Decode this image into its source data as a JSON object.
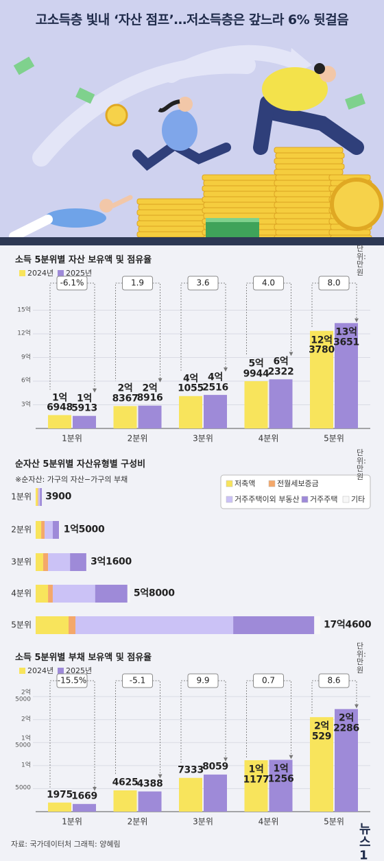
{
  "title": "고소득층 빛내 ‘자산 점프’…저소득층은 갚느라 6% 뒷걸음",
  "chart_data": [
    {
      "type": "bar",
      "title": "소득 5분위별 자산 보유액 및 점유율",
      "unit": "단위: 만 원",
      "categories": [
        "1분위",
        "2분위",
        "3분위",
        "4분위",
        "5분위"
      ],
      "series": [
        {
          "name": "2024년",
          "color": "#f8e45c",
          "values": [
            16948,
            28367,
            41055,
            59944,
            123780
          ],
          "value_labels": [
            "1억\n6948",
            "2억\n8367",
            "4억\n1055",
            "5억\n9944",
            "12억\n3780"
          ]
        },
        {
          "name": "2025년",
          "color": "#9e8ad8",
          "values": [
            15913,
            28916,
            42516,
            62322,
            133651
          ],
          "value_labels": [
            "1억\n5913",
            "2억\n8916",
            "4억\n2516",
            "6억\n2322",
            "13억\n3651"
          ]
        }
      ],
      "changes": [
        -6.1,
        1.9,
        3.6,
        4.0,
        8.0
      ],
      "change_labels": [
        "-6.1%",
        "1.9",
        "3.6",
        "4.0",
        "8.0"
      ],
      "ylim": [
        0,
        180000
      ],
      "yticks": [
        {
          "value": 30000,
          "label": "3억"
        },
        {
          "value": 60000,
          "label": "6억"
        },
        {
          "value": 90000,
          "label": "9억"
        },
        {
          "value": 120000,
          "label": "12억"
        },
        {
          "value": 150000,
          "label": "15억"
        }
      ],
      "grid": true
    },
    {
      "type": "hbar_stacked",
      "title": "순자산 5분위별 자산유형별 구성비",
      "unit": "단위: 만 원",
      "note": "※순자산: 가구의 자산−가구의 부채",
      "categories": [
        "1분위",
        "2분위",
        "3분위",
        "4분위",
        "5분위"
      ],
      "series": [
        {
          "name": "저축액",
          "color": "#f8e45c",
          "values": [
            1200,
            3400,
            4600,
            7600,
            20200
          ]
        },
        {
          "name": "전월세보증금",
          "color": "#f4a86a",
          "values": [
            400,
            2100,
            3000,
            2900,
            4200
          ]
        },
        {
          "name": "거주주택이외 부동산",
          "color": "#cbc2f6",
          "values": [
            1000,
            5000,
            13500,
            26000,
            96800
          ]
        },
        {
          "name": "거주주택",
          "color": "#9e8ad8",
          "values": [
            1200,
            3800,
            10000,
            19800,
            49700
          ]
        },
        {
          "name": "기타",
          "color": "#f7f7f7",
          "values": [
            100,
            700,
            500,
            1700,
            3700
          ]
        }
      ],
      "totals": [
        3900,
        15000,
        31600,
        58000,
        174600
      ],
      "total_labels": [
        "3900",
        "1억5000",
        "3억1600",
        "5억8000",
        "17억4600"
      ],
      "xlim": [
        0,
        175000
      ]
    },
    {
      "type": "bar",
      "title": "소득 5분위별 부채 보유액 및 점유율",
      "unit": "단위: 만 원",
      "categories": [
        "1분위",
        "2분위",
        "3분위",
        "4분위",
        "5분위"
      ],
      "series": [
        {
          "name": "2024년",
          "color": "#f8e45c",
          "values": [
            1975,
            4625,
            7333,
            11177,
            20529
          ],
          "value_labels": [
            "1975",
            "4625",
            "7333",
            "1억\n1177",
            "2억\n529"
          ]
        },
        {
          "name": "2025년",
          "color": "#9e8ad8",
          "values": [
            1669,
            4388,
            8059,
            11256,
            22286
          ],
          "value_labels": [
            "1669",
            "4388",
            "8059",
            "1억\n1256",
            "2억\n2286"
          ]
        }
      ],
      "changes": [
        -15.5,
        -5.1,
        9.9,
        0.7,
        8.6
      ],
      "change_labels": [
        "-15.5%",
        "-5.1",
        "9.9",
        "0.7",
        "8.6"
      ],
      "ylim": [
        0,
        28000
      ],
      "yticks": [
        5000,
        {
          "value": 10000,
          "label": "1억"
        },
        {
          "value": 15000,
          "label": "1억\n5000"
        },
        {
          "value": 20000,
          "label": "2억"
        },
        {
          "value": 25000,
          "label": "2억\n5000"
        }
      ],
      "grid": true
    }
  ],
  "footer": {
    "source": "자료: 국가데이터처   그래픽: 양혜림",
    "logo": "뉴스1"
  }
}
